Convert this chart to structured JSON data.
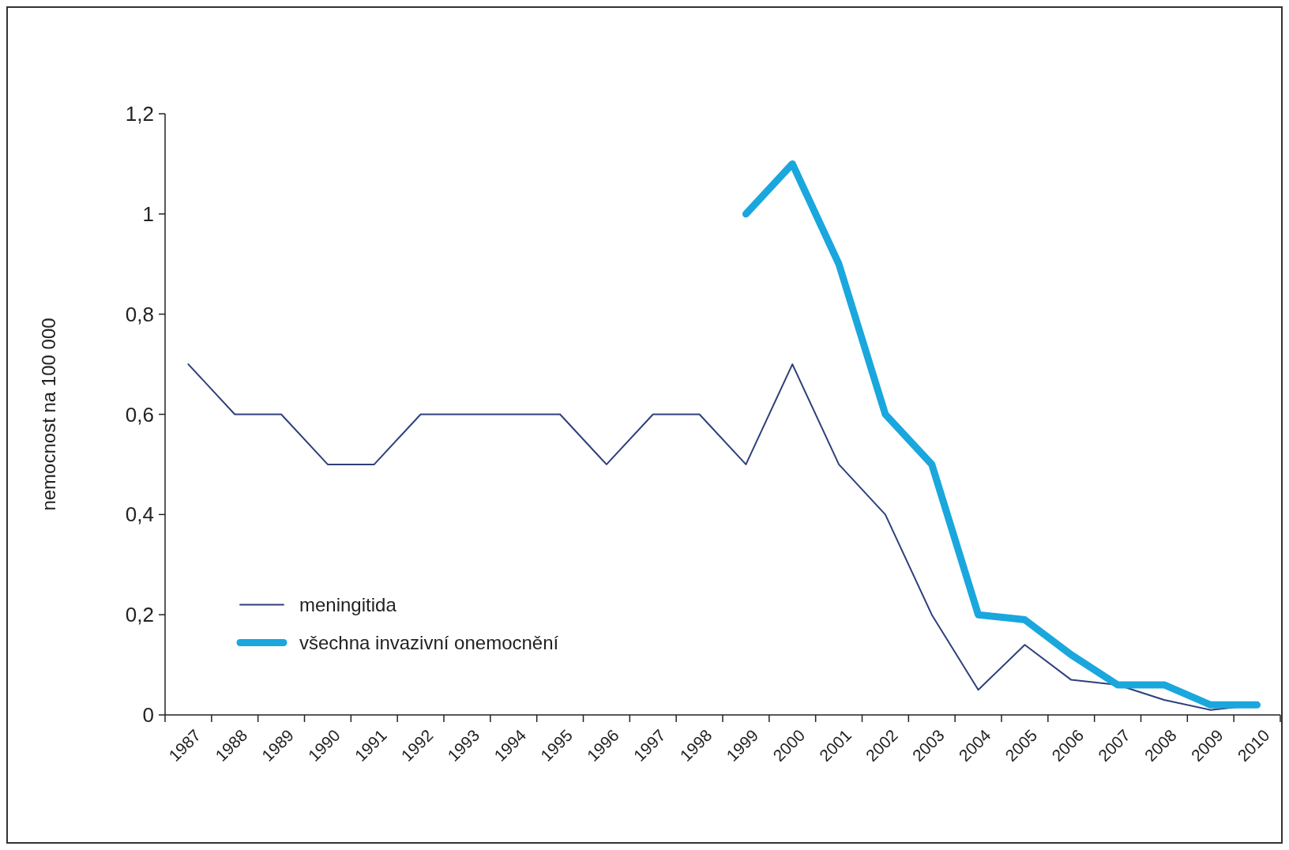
{
  "chart_data": {
    "type": "line",
    "ylabel": "nemocnost na 100 000",
    "categories": [
      "1987",
      "1988",
      "1989",
      "1990",
      "1991",
      "1992",
      "1993",
      "1994",
      "1995",
      "1996",
      "1997",
      "1998",
      "1999",
      "2000",
      "2001",
      "2002",
      "2003",
      "2004",
      "2005",
      "2006",
      "2007",
      "2008",
      "2009",
      "2010"
    ],
    "series": [
      {
        "name": "meningitida",
        "color": "#2e3f7a",
        "values": [
          0.7,
          0.6,
          0.6,
          0.5,
          0.5,
          0.6,
          0.6,
          0.6,
          0.6,
          0.5,
          0.6,
          0.6,
          0.5,
          0.7,
          0.5,
          0.4,
          0.2,
          0.05,
          0.14,
          0.07,
          0.06,
          0.03,
          0.01,
          0.02
        ]
      },
      {
        "name": "všechna invazivní onemocnění",
        "color": "#1aa7dd",
        "values": [
          null,
          null,
          null,
          null,
          null,
          null,
          null,
          null,
          null,
          null,
          null,
          null,
          1.0,
          1.1,
          0.9,
          0.6,
          0.5,
          0.2,
          0.19,
          0.12,
          0.06,
          0.06,
          0.02,
          0.02
        ]
      }
    ],
    "ylim": [
      0,
      1.2
    ],
    "yticks": [
      0,
      {
        "value": 0.2,
        "label": "0,2"
      },
      {
        "value": 0.4,
        "label": "0,4"
      },
      {
        "value": 0.6,
        "label": "0,6"
      },
      {
        "value": 0.8,
        "label": "0,8"
      },
      1,
      {
        "value": 1.2,
        "label": "1,2"
      }
    ],
    "grid": false,
    "legend": "bottom left",
    "marker": "none",
    "line_style": "solid"
  }
}
